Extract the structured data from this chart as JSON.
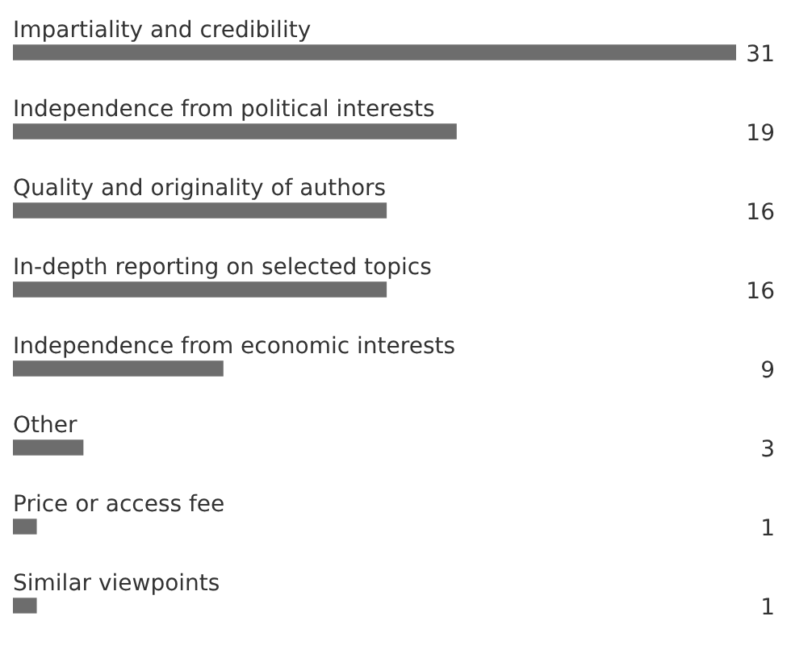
{
  "chart_data": {
    "type": "bar",
    "orientation": "horizontal",
    "categories": [
      "Impartiality and credibility",
      "Independence from political interests",
      "Quality and originality of authors",
      "In-depth reporting on selected topics",
      "Independence from economic interests",
      "Other",
      "Price or access fee",
      "Similar viewpoints"
    ],
    "values": [
      31,
      19,
      16,
      16,
      9,
      3,
      1,
      1
    ],
    "color": "#6d6d6d",
    "data_labels": true
  }
}
